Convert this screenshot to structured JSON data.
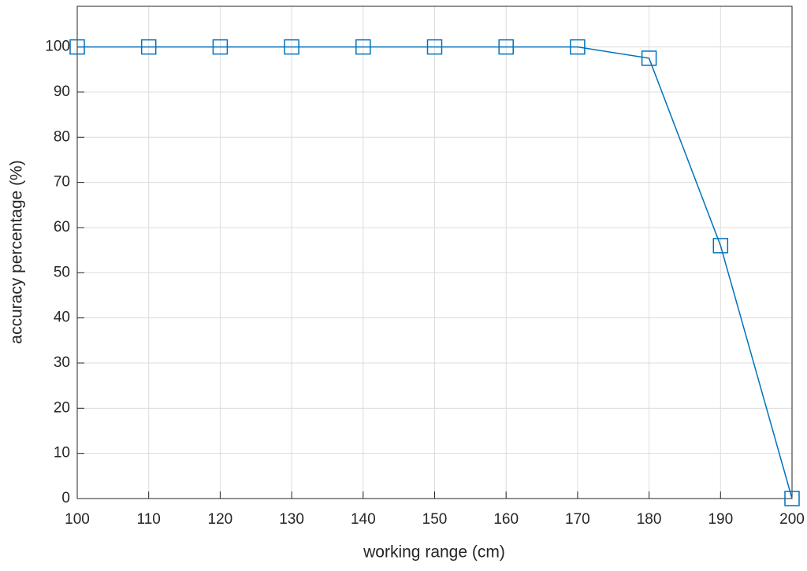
{
  "chart_data": {
    "type": "line",
    "xlabel": "working range (cm)",
    "ylabel": "accuracy percentage (%)",
    "x": [
      100,
      110,
      120,
      130,
      140,
      150,
      160,
      170,
      180,
      190,
      200
    ],
    "series": [
      {
        "color": "#0072bd",
        "values": [
          100,
          100,
          100,
          100,
          100,
          100,
          100,
          100,
          97.5,
          56,
          0
        ]
      }
    ],
    "xlim": [
      100,
      200
    ],
    "xticks": [
      100,
      110,
      120,
      130,
      140,
      150,
      160,
      170,
      180,
      190,
      200
    ],
    "ylim": [
      0,
      109
    ],
    "yticks": [
      0,
      10,
      20,
      30,
      40,
      50,
      60,
      70,
      80,
      90,
      100
    ],
    "grid": true,
    "marker": "square"
  }
}
